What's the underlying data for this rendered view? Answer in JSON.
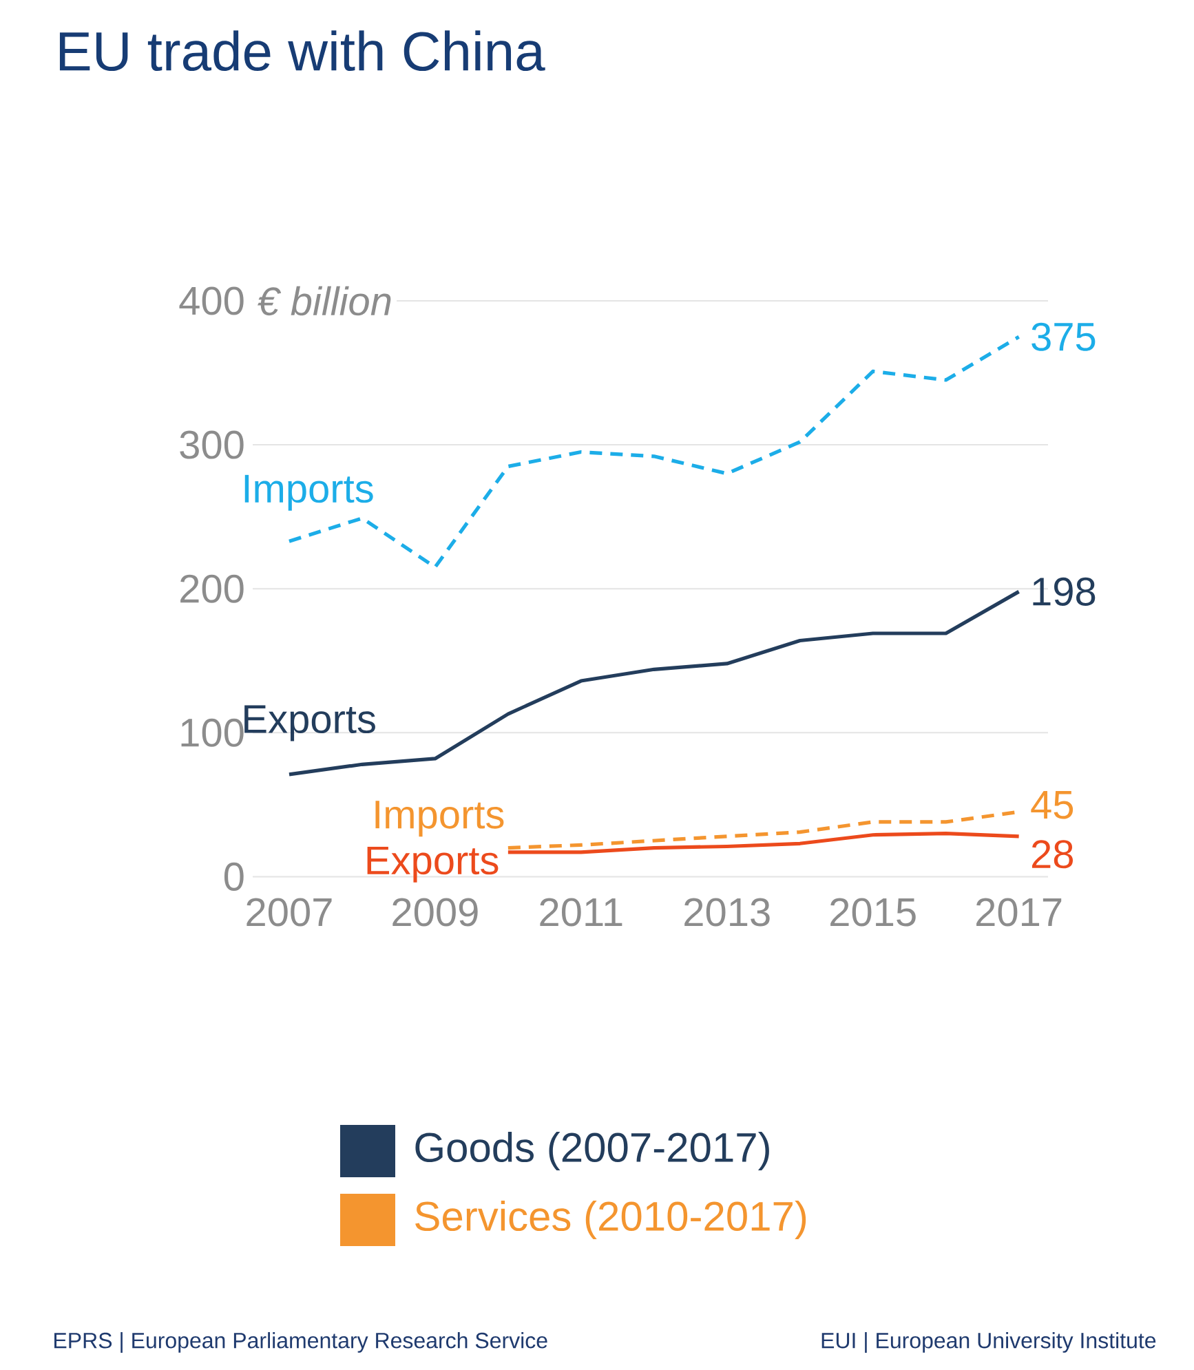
{
  "chart_data": {
    "type": "line",
    "title": "EU trade with China",
    "ylabel": "€ billion",
    "x": [
      2007,
      2008,
      2009,
      2010,
      2011,
      2012,
      2013,
      2014,
      2015,
      2016,
      2017
    ],
    "xlim": [
      2006.5,
      2017.4
    ],
    "xticks": [
      2007,
      2009,
      2011,
      2013,
      2015,
      2017
    ],
    "ylim": [
      0,
      400
    ],
    "yticks": [
      0,
      100,
      200,
      300,
      400
    ],
    "grid": "y",
    "legend": "bottom",
    "series": [
      {
        "name": "Imports",
        "color": "#1cade8",
        "line_style": "dashed",
        "values": [
          233,
          249,
          215,
          285,
          295,
          292,
          280,
          302,
          351,
          345,
          375
        ],
        "value_labels": [
          null,
          null,
          null,
          null,
          null,
          null,
          null,
          null,
          null,
          null,
          "375"
        ]
      },
      {
        "name": "Exports",
        "color": "#233d5c",
        "line_style": "solid",
        "values": [
          71,
          78,
          82,
          113,
          136,
          144,
          148,
          164,
          169,
          169,
          198
        ],
        "value_labels": [
          null,
          null,
          null,
          null,
          null,
          null,
          null,
          null,
          null,
          null,
          "198"
        ]
      },
      {
        "name": "Imports",
        "color": "#f4952f",
        "line_style": "dashed",
        "values": [
          null,
          null,
          null,
          20,
          22,
          25,
          28,
          31,
          38,
          38,
          45
        ],
        "value_labels": [
          null,
          null,
          null,
          null,
          null,
          null,
          null,
          null,
          null,
          null,
          "45"
        ]
      },
      {
        "name": "Exports",
        "color": "#ec4a1c",
        "line_style": "solid",
        "values": [
          null,
          null,
          null,
          17,
          17,
          20,
          21,
          23,
          29,
          30,
          28
        ],
        "value_labels": [
          null,
          null,
          null,
          null,
          null,
          null,
          null,
          null,
          null,
          null,
          "28"
        ]
      }
    ],
    "annotations": [
      "EPRS | European Parliamentary Research Service",
      "EUI | European University Institute",
      "Goods (2007-2017)",
      "Services (2010-2017)"
    ]
  }
}
